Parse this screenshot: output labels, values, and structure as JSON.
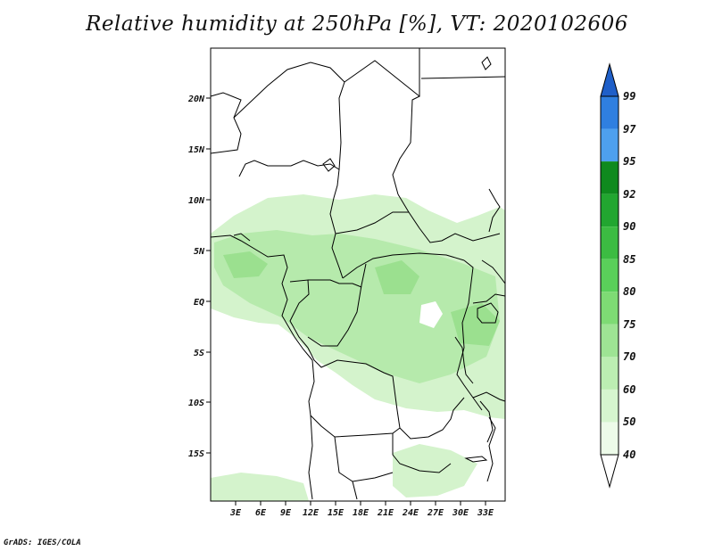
{
  "title": "Relative humidity at 250hPa [%], VT: 2020102606",
  "footer": "GrADS: IGES/COLA",
  "map": {
    "lon_labels": [
      "3E",
      "6E",
      "9E",
      "12E",
      "15E",
      "18E",
      "21E",
      "24E",
      "27E",
      "30E",
      "33E"
    ],
    "lat_labels": [
      "20N",
      "15N",
      "10N",
      "5N",
      "EQ",
      "5S",
      "10S",
      "15S"
    ]
  },
  "colorbar": {
    "levels": [
      "99",
      "97",
      "95",
      "92",
      "90",
      "85",
      "80",
      "75",
      "70",
      "60",
      "50",
      "40"
    ],
    "colors": [
      "#1f5fc8",
      "#2f7fe0",
      "#4ea0ee",
      "#0f8a1e",
      "#22a630",
      "#3cbc42",
      "#5ad05a",
      "#7edb74",
      "#9ee494",
      "#bceeb2",
      "#d6f5cf",
      "#edfbe9"
    ]
  },
  "colors": {
    "humid_fill_light": "#d4f3cc",
    "humid_fill_mid": "#b6eaac",
    "humid_fill_dark": "#9be08f"
  }
}
